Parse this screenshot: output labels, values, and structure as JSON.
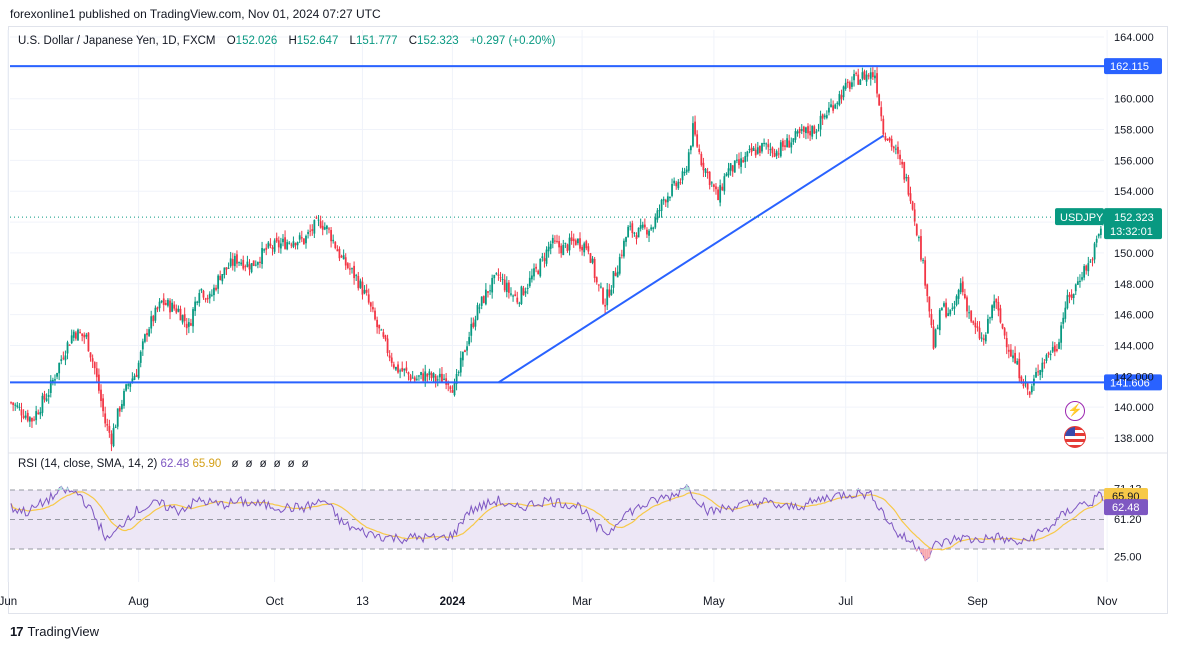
{
  "publisher": "forexonline1 published on TradingView.com, Nov 01, 2024 07:27 UTC",
  "legend": {
    "symbol": "U.S. Dollar / Japanese Yen, 1D, FXCM",
    "o_label": "O",
    "o": "152.026",
    "h_label": "H",
    "h": "152.647",
    "l_label": "L",
    "l": "151.777",
    "c_label": "C",
    "c": "152.323",
    "change": "+0.297 (+0.20%)"
  },
  "rsi_legend": {
    "title": "RSI (14, close, SMA, 14, 2)",
    "value": "62.48",
    "sma": "65.90",
    "eye_icons": [
      "ø",
      "ø",
      "ø",
      "ø",
      "ø",
      "ø"
    ]
  },
  "brand": {
    "logo": "17",
    "name": "TradingView"
  },
  "colors": {
    "up": "#089981",
    "down": "#f23645",
    "hline": "#2962ff",
    "rsi": "#7e57c2",
    "rsi_ma": "#f7c948",
    "band": "#ede7f6"
  },
  "icons": [
    "lightning-icon",
    "us-flag-icon"
  ],
  "chart_data": {
    "type": "candlestick",
    "symbol": "USDJPY",
    "timeframe": "1D",
    "y_range": [
      137.2,
      165.0
    ],
    "y_ticks": [
      "164.000",
      "162.000",
      "160.000",
      "158.000",
      "156.000",
      "154.000",
      "152.000",
      "150.000",
      "148.000",
      "146.000",
      "144.000",
      "142.000",
      "140.000",
      "138.000"
    ],
    "x_ticks": [
      "Jun",
      "Aug",
      "Oct",
      "13",
      "2024",
      "Mar",
      "May",
      "Jul",
      "Sep",
      "Nov"
    ],
    "x_tick_positions": [
      -1.5,
      61,
      126,
      168,
      211,
      273,
      336,
      399,
      462,
      524
    ],
    "horizontal_lines": [
      {
        "value": 162.115,
        "label": "162.115"
      },
      {
        "value": 141.606,
        "label": "141.606"
      }
    ],
    "trendline": {
      "from": {
        "x": 233,
        "value": 141.6
      },
      "to": {
        "x": 417,
        "value": 157.6
      }
    },
    "last_price": {
      "value": 152.323,
      "symbol_label": "USDJPY",
      "price_label": "152.323",
      "countdown": "13:32:01"
    },
    "bars": 523,
    "anchors": [
      [
        0,
        140.3
      ],
      [
        10,
        139.2
      ],
      [
        18,
        141.0
      ],
      [
        25,
        143.5
      ],
      [
        30,
        144.9
      ],
      [
        36,
        144.5
      ],
      [
        40,
        142.5
      ],
      [
        45,
        139.0
      ],
      [
        48,
        138.0
      ],
      [
        52,
        140.0
      ],
      [
        56,
        141.5
      ],
      [
        60,
        142.3
      ],
      [
        65,
        145.0
      ],
      [
        72,
        146.8
      ],
      [
        80,
        146.3
      ],
      [
        85,
        145.2
      ],
      [
        90,
        147.8
      ],
      [
        95,
        147.0
      ],
      [
        100,
        148.6
      ],
      [
        108,
        149.6
      ],
      [
        115,
        149.2
      ],
      [
        122,
        150.2
      ],
      [
        128,
        150.5
      ],
      [
        135,
        150.9
      ],
      [
        140,
        150.8
      ],
      [
        145,
        151.7
      ],
      [
        148,
        152.0
      ],
      [
        152,
        151.4
      ],
      [
        158,
        149.6
      ],
      [
        165,
        148.4
      ],
      [
        170,
        147.1
      ],
      [
        175,
        145.2
      ],
      [
        180,
        143.7
      ],
      [
        184,
        142.5
      ],
      [
        188,
        142.3
      ],
      [
        193,
        141.8
      ],
      [
        198,
        142.1
      ],
      [
        203,
        141.8
      ],
      [
        208,
        141.9
      ],
      [
        212,
        141.2
      ],
      [
        217,
        143.8
      ],
      [
        222,
        146.0
      ],
      [
        228,
        147.6
      ],
      [
        233,
        148.5
      ],
      [
        238,
        147.5
      ],
      [
        242,
        147.0
      ],
      [
        247,
        148.0
      ],
      [
        252,
        149.0
      ],
      [
        258,
        150.6
      ],
      [
        264,
        150.3
      ],
      [
        270,
        150.8
      ],
      [
        276,
        150.4
      ],
      [
        280,
        148.0
      ],
      [
        284,
        146.8
      ],
      [
        290,
        149.2
      ],
      [
        295,
        151.5
      ],
      [
        300,
        151.3
      ],
      [
        307,
        151.8
      ],
      [
        312,
        153.5
      ],
      [
        318,
        154.4
      ],
      [
        322,
        155.0
      ],
      [
        326,
        158.0
      ],
      [
        330,
        156.0
      ],
      [
        334,
        154.8
      ],
      [
        338,
        153.5
      ],
      [
        342,
        155.3
      ],
      [
        348,
        155.7
      ],
      [
        354,
        156.5
      ],
      [
        360,
        156.9
      ],
      [
        366,
        156.6
      ],
      [
        372,
        157.2
      ],
      [
        378,
        157.7
      ],
      [
        385,
        158.1
      ],
      [
        392,
        159.5
      ],
      [
        398,
        160.5
      ],
      [
        403,
        161.2
      ],
      [
        408,
        161.5
      ],
      [
        413,
        161.6
      ],
      [
        417,
        158.0
      ],
      [
        422,
        156.8
      ],
      [
        426,
        155.5
      ],
      [
        430,
        153.8
      ],
      [
        434,
        150.8
      ],
      [
        438,
        147.5
      ],
      [
        441,
        144.0
      ],
      [
        445,
        146.5
      ],
      [
        450,
        146.0
      ],
      [
        454,
        148.0
      ],
      [
        460,
        145.2
      ],
      [
        465,
        144.2
      ],
      [
        470,
        147.0
      ],
      [
        473,
        145.5
      ],
      [
        478,
        143.5
      ],
      [
        483,
        142.0
      ],
      [
        487,
        140.8
      ],
      [
        491,
        142.5
      ],
      [
        496,
        143.5
      ],
      [
        500,
        144.0
      ],
      [
        504,
        146.6
      ],
      [
        508,
        147.5
      ],
      [
        512,
        148.8
      ],
      [
        516,
        149.4
      ],
      [
        520,
        151.2
      ],
      [
        523,
        152.3
      ]
    ],
    "rsi": {
      "value": 62.48,
      "sma": 65.9,
      "upper": 70,
      "lower": 30,
      "axis_labels": [
        "71.13",
        "61.20",
        "25.00"
      ],
      "anchors": [
        [
          0,
          58
        ],
        [
          8,
          55
        ],
        [
          16,
          62
        ],
        [
          25,
          70
        ],
        [
          33,
          67
        ],
        [
          40,
          52
        ],
        [
          46,
          36
        ],
        [
          50,
          41
        ],
        [
          56,
          52
        ],
        [
          60,
          56
        ],
        [
          70,
          61
        ],
        [
          80,
          56
        ],
        [
          90,
          63
        ],
        [
          100,
          60
        ],
        [
          110,
          62
        ],
        [
          120,
          60
        ],
        [
          130,
          58
        ],
        [
          140,
          58
        ],
        [
          150,
          63
        ],
        [
          158,
          48
        ],
        [
          165,
          43
        ],
        [
          172,
          40
        ],
        [
          180,
          38
        ],
        [
          188,
          37
        ],
        [
          195,
          38
        ],
        [
          205,
          37
        ],
        [
          212,
          40
        ],
        [
          218,
          55
        ],
        [
          225,
          59
        ],
        [
          233,
          63
        ],
        [
          240,
          57
        ],
        [
          248,
          60
        ],
        [
          256,
          63
        ],
        [
          264,
          61
        ],
        [
          272,
          59
        ],
        [
          280,
          44
        ],
        [
          286,
          41
        ],
        [
          292,
          53
        ],
        [
          300,
          58
        ],
        [
          310,
          64
        ],
        [
          318,
          67
        ],
        [
          322,
          74
        ],
        [
          328,
          64
        ],
        [
          334,
          55
        ],
        [
          342,
          58
        ],
        [
          350,
          60
        ],
        [
          360,
          62
        ],
        [
          370,
          58
        ],
        [
          380,
          60
        ],
        [
          390,
          65
        ],
        [
          398,
          67
        ],
        [
          406,
          68
        ],
        [
          412,
          66
        ],
        [
          418,
          52
        ],
        [
          424,
          40
        ],
        [
          430,
          35
        ],
        [
          435,
          30
        ],
        [
          438,
          23
        ],
        [
          442,
          33
        ],
        [
          448,
          35
        ],
        [
          454,
          38
        ],
        [
          460,
          36
        ],
        [
          466,
          37
        ],
        [
          472,
          38
        ],
        [
          478,
          35
        ],
        [
          484,
          34
        ],
        [
          490,
          40
        ],
        [
          496,
          44
        ],
        [
          502,
          52
        ],
        [
          510,
          60
        ],
        [
          516,
          61
        ],
        [
          520,
          66
        ],
        [
          523,
          62.48
        ]
      ]
    }
  }
}
